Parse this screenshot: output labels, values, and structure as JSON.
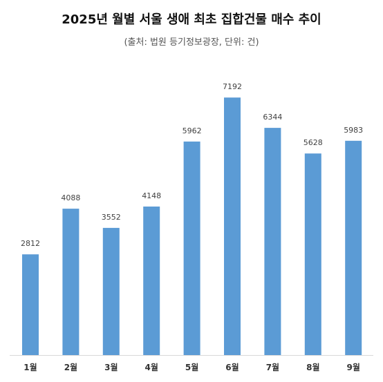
{
  "chart_data": {
    "type": "bar",
    "title": "2025년 월별 서울 생애 최초 집합건물 매수 추이",
    "subtitle": "(출처: 법원 등기정보광장, 단위: 건)",
    "categories": [
      "1월",
      "2월",
      "3월",
      "4월",
      "5월",
      "6월",
      "7월",
      "8월",
      "9월"
    ],
    "values": [
      2812,
      4088,
      3552,
      4148,
      5962,
      7192,
      6344,
      5628,
      5983
    ],
    "xlabel": "",
    "ylabel": "",
    "ylim": [
      0,
      7600
    ],
    "grid": false,
    "legend": "none",
    "bar_color": "#5B9BD5",
    "axis_color": "#D9D9D9"
  }
}
